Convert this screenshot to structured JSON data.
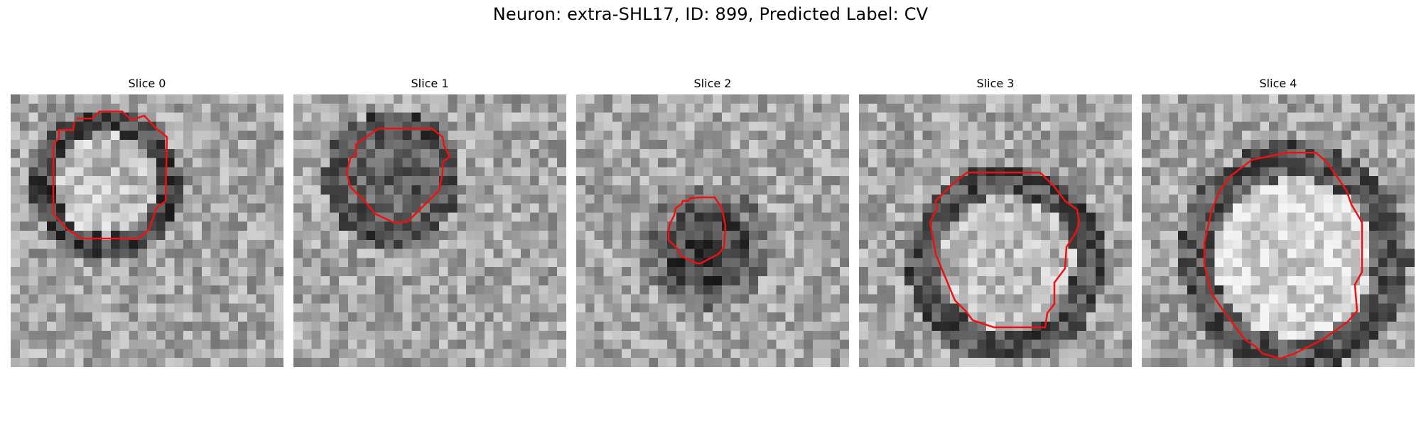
{
  "title": "Neuron: extra-SHL17, ID: 899, Predicted Label: CV",
  "contour_color": "#ee1111",
  "slices": [
    {
      "label": "Slice 0",
      "ring_center": [
        0.35,
        0.33
      ],
      "ring_radius": 0.22,
      "inner_tone": 190,
      "band_tone": 70,
      "seed": 11
    },
    {
      "label": "Slice 1",
      "ring_center": [
        0.36,
        0.31
      ],
      "ring_radius": 0.2,
      "inner_tone": 95,
      "band_tone": 75,
      "seed": 23
    },
    {
      "label": "Slice 2",
      "ring_center": [
        0.48,
        0.56
      ],
      "ring_radius": 0.19,
      "inner_tone": 70,
      "band_tone": 120,
      "seed": 37
    },
    {
      "label": "Slice 3",
      "ring_center": [
        0.54,
        0.62
      ],
      "ring_radius": 0.29,
      "inner_tone": 185,
      "band_tone": 80,
      "seed": 41
    },
    {
      "label": "Slice 4",
      "ring_center": [
        0.56,
        0.6
      ],
      "ring_radius": 0.34,
      "inner_tone": 215,
      "band_tone": 85,
      "seed": 59
    }
  ]
}
